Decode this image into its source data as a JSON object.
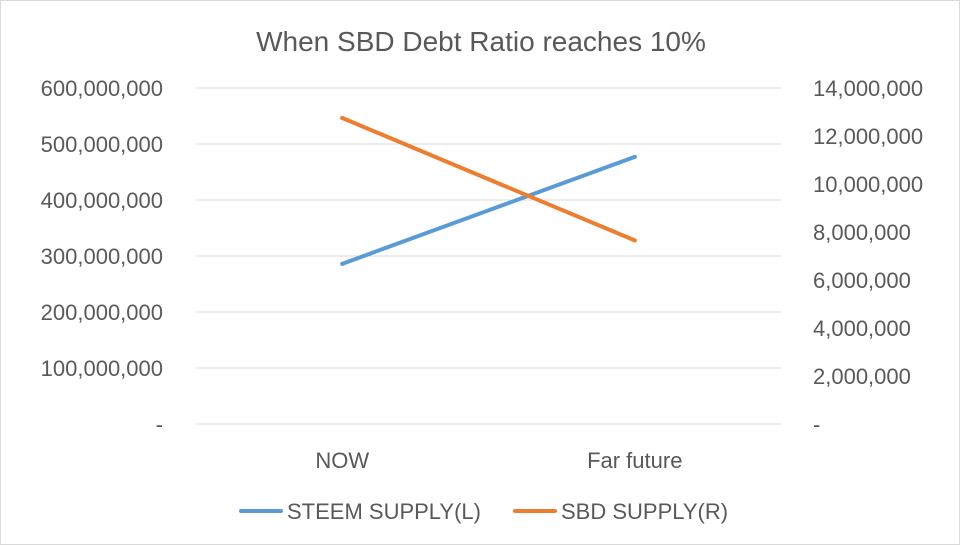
{
  "chart_data": {
    "type": "line",
    "title": "When SBD Debt Ratio reaches 10%",
    "categories": [
      "NOW",
      "Far future"
    ],
    "series": [
      {
        "name": "STEEM SUPPLY(L)",
        "axis": "left",
        "color": "#5b9bd5",
        "values": [
          286000000,
          477000000
        ]
      },
      {
        "name": "SBD SUPPLY(R)",
        "axis": "right",
        "color": "#ed7d31",
        "values": [
          12750000,
          7650000
        ]
      }
    ],
    "y_left": {
      "ylim": [
        0,
        600000000
      ],
      "ticks": [
        "-",
        "100,000,000",
        "200,000,000",
        "300,000,000",
        "400,000,000",
        "500,000,000",
        "600,000,000"
      ]
    },
    "y_right": {
      "ylim": [
        0,
        14000000
      ],
      "ticks": [
        "-",
        "2,000,000",
        "4,000,000",
        "6,000,000",
        "8,000,000",
        "10,000,000",
        "12,000,000",
        "14,000,000"
      ]
    },
    "grid": true,
    "legend": "bottom"
  }
}
